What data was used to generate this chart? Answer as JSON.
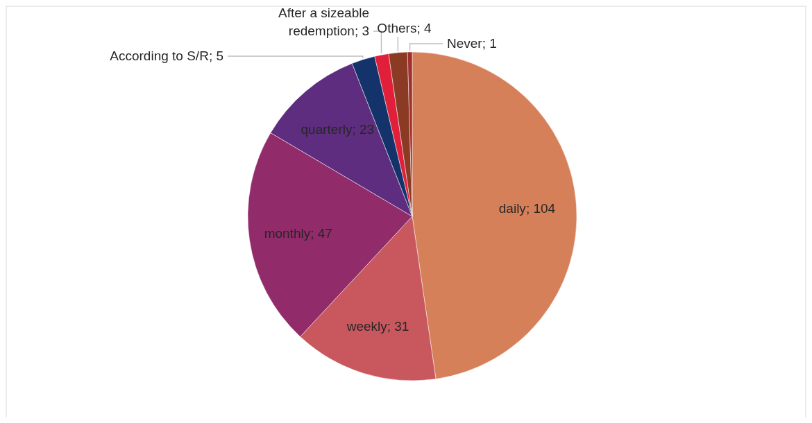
{
  "chart_data": {
    "type": "pie",
    "categories": [
      "daily",
      "weekly",
      "monthly",
      "quarterly",
      "According to S/R",
      "After a sizeable redemption",
      "Others",
      "Never"
    ],
    "values": [
      104,
      31,
      47,
      23,
      5,
      3,
      4,
      1
    ],
    "colors": [
      "#d6805a",
      "#c9575e",
      "#922b6a",
      "#5e2d7f",
      "#13336a",
      "#e0203a",
      "#8b3b24",
      "#a0302e"
    ],
    "value_labels": [
      "; 104",
      "; 31",
      "; 47",
      "; 23",
      "; 5",
      "; 3",
      "; 4",
      "; 1"
    ]
  }
}
